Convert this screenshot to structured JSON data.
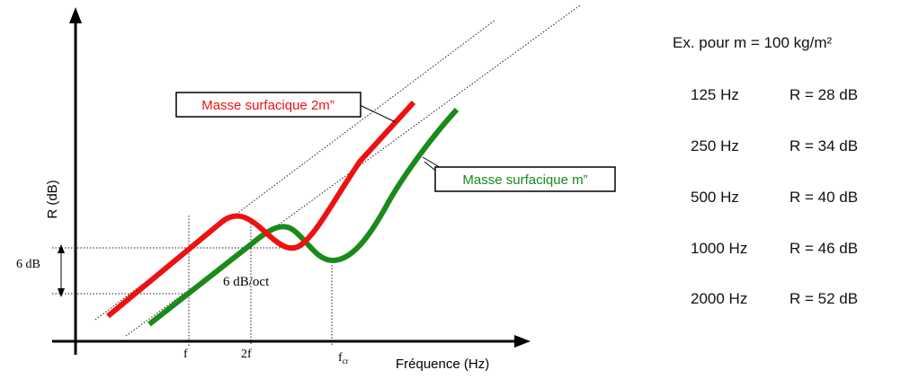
{
  "diagram": {
    "axis_y_label": "R (dB)",
    "axis_x_label": "Fréquence (Hz)",
    "label_6db": "6 dB",
    "slope_label": "6 dB/oct",
    "tick_f": "f",
    "tick_2f": "2f",
    "tick_fcr_main": "f",
    "tick_fcr_sub": "cr",
    "curve_2m_label": "Masse surfacique 2m”",
    "curve_m_label": "Masse surfacique m”",
    "colors": {
      "curve_2m": "#ee1111",
      "curve_m": "#1a8a1a",
      "axis": "#000000"
    }
  },
  "example": {
    "title": "Ex. pour m = 100 kg/m²",
    "rows": [
      {
        "freq": "125 Hz",
        "r": "R = 28 dB"
      },
      {
        "freq": "250 Hz",
        "r": "R = 34 dB"
      },
      {
        "freq": "500 Hz",
        "r": "R = 40 dB"
      },
      {
        "freq": "1000 Hz",
        "r": "R = 46 dB"
      },
      {
        "freq": "2000 Hz",
        "r": "R = 52 dB"
      }
    ]
  }
}
